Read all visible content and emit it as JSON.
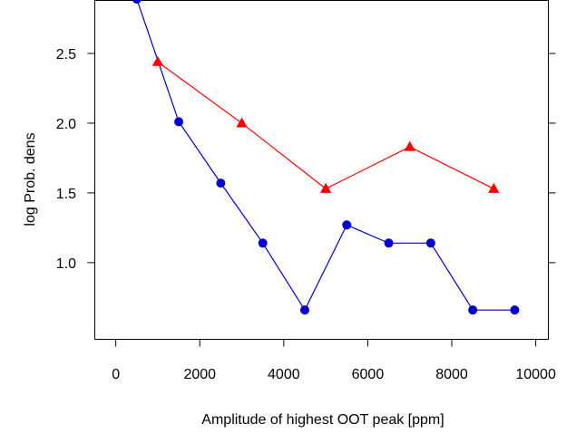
{
  "chart_data": {
    "type": "line",
    "title": "",
    "xlabel": "Amplitude of highest OOT peak [ppm]",
    "ylabel": "log Prob. dens",
    "xlim": [
      -500,
      10300
    ],
    "ylim": [
      0.45,
      2.88
    ],
    "x_ticks": [
      0,
      2000,
      4000,
      6000,
      8000,
      10000
    ],
    "x_tick_labels": [
      "0",
      "2000",
      "4000",
      "6000",
      "8000",
      "10000"
    ],
    "y_ticks": [
      1.0,
      1.5,
      2.0,
      2.5
    ],
    "y_tick_labels": [
      "1.0",
      "1.5",
      "2.0",
      "2.5"
    ],
    "grid": false,
    "legend": "none",
    "series": [
      {
        "marker": "circle",
        "color": "#0000cc",
        "x": [
          500,
          1500,
          2500,
          3500,
          4500,
          5500,
          6500,
          7500,
          8500,
          9500
        ],
        "y": [
          2.89,
          2.01,
          1.57,
          1.14,
          0.66,
          1.27,
          1.14,
          1.14,
          0.66,
          0.66
        ]
      },
      {
        "marker": "triangle",
        "color": "#ff0000",
        "x": [
          1000,
          3000,
          5000,
          7000,
          9000
        ],
        "y": [
          2.44,
          2.0,
          1.53,
          1.83,
          1.53
        ]
      }
    ]
  }
}
